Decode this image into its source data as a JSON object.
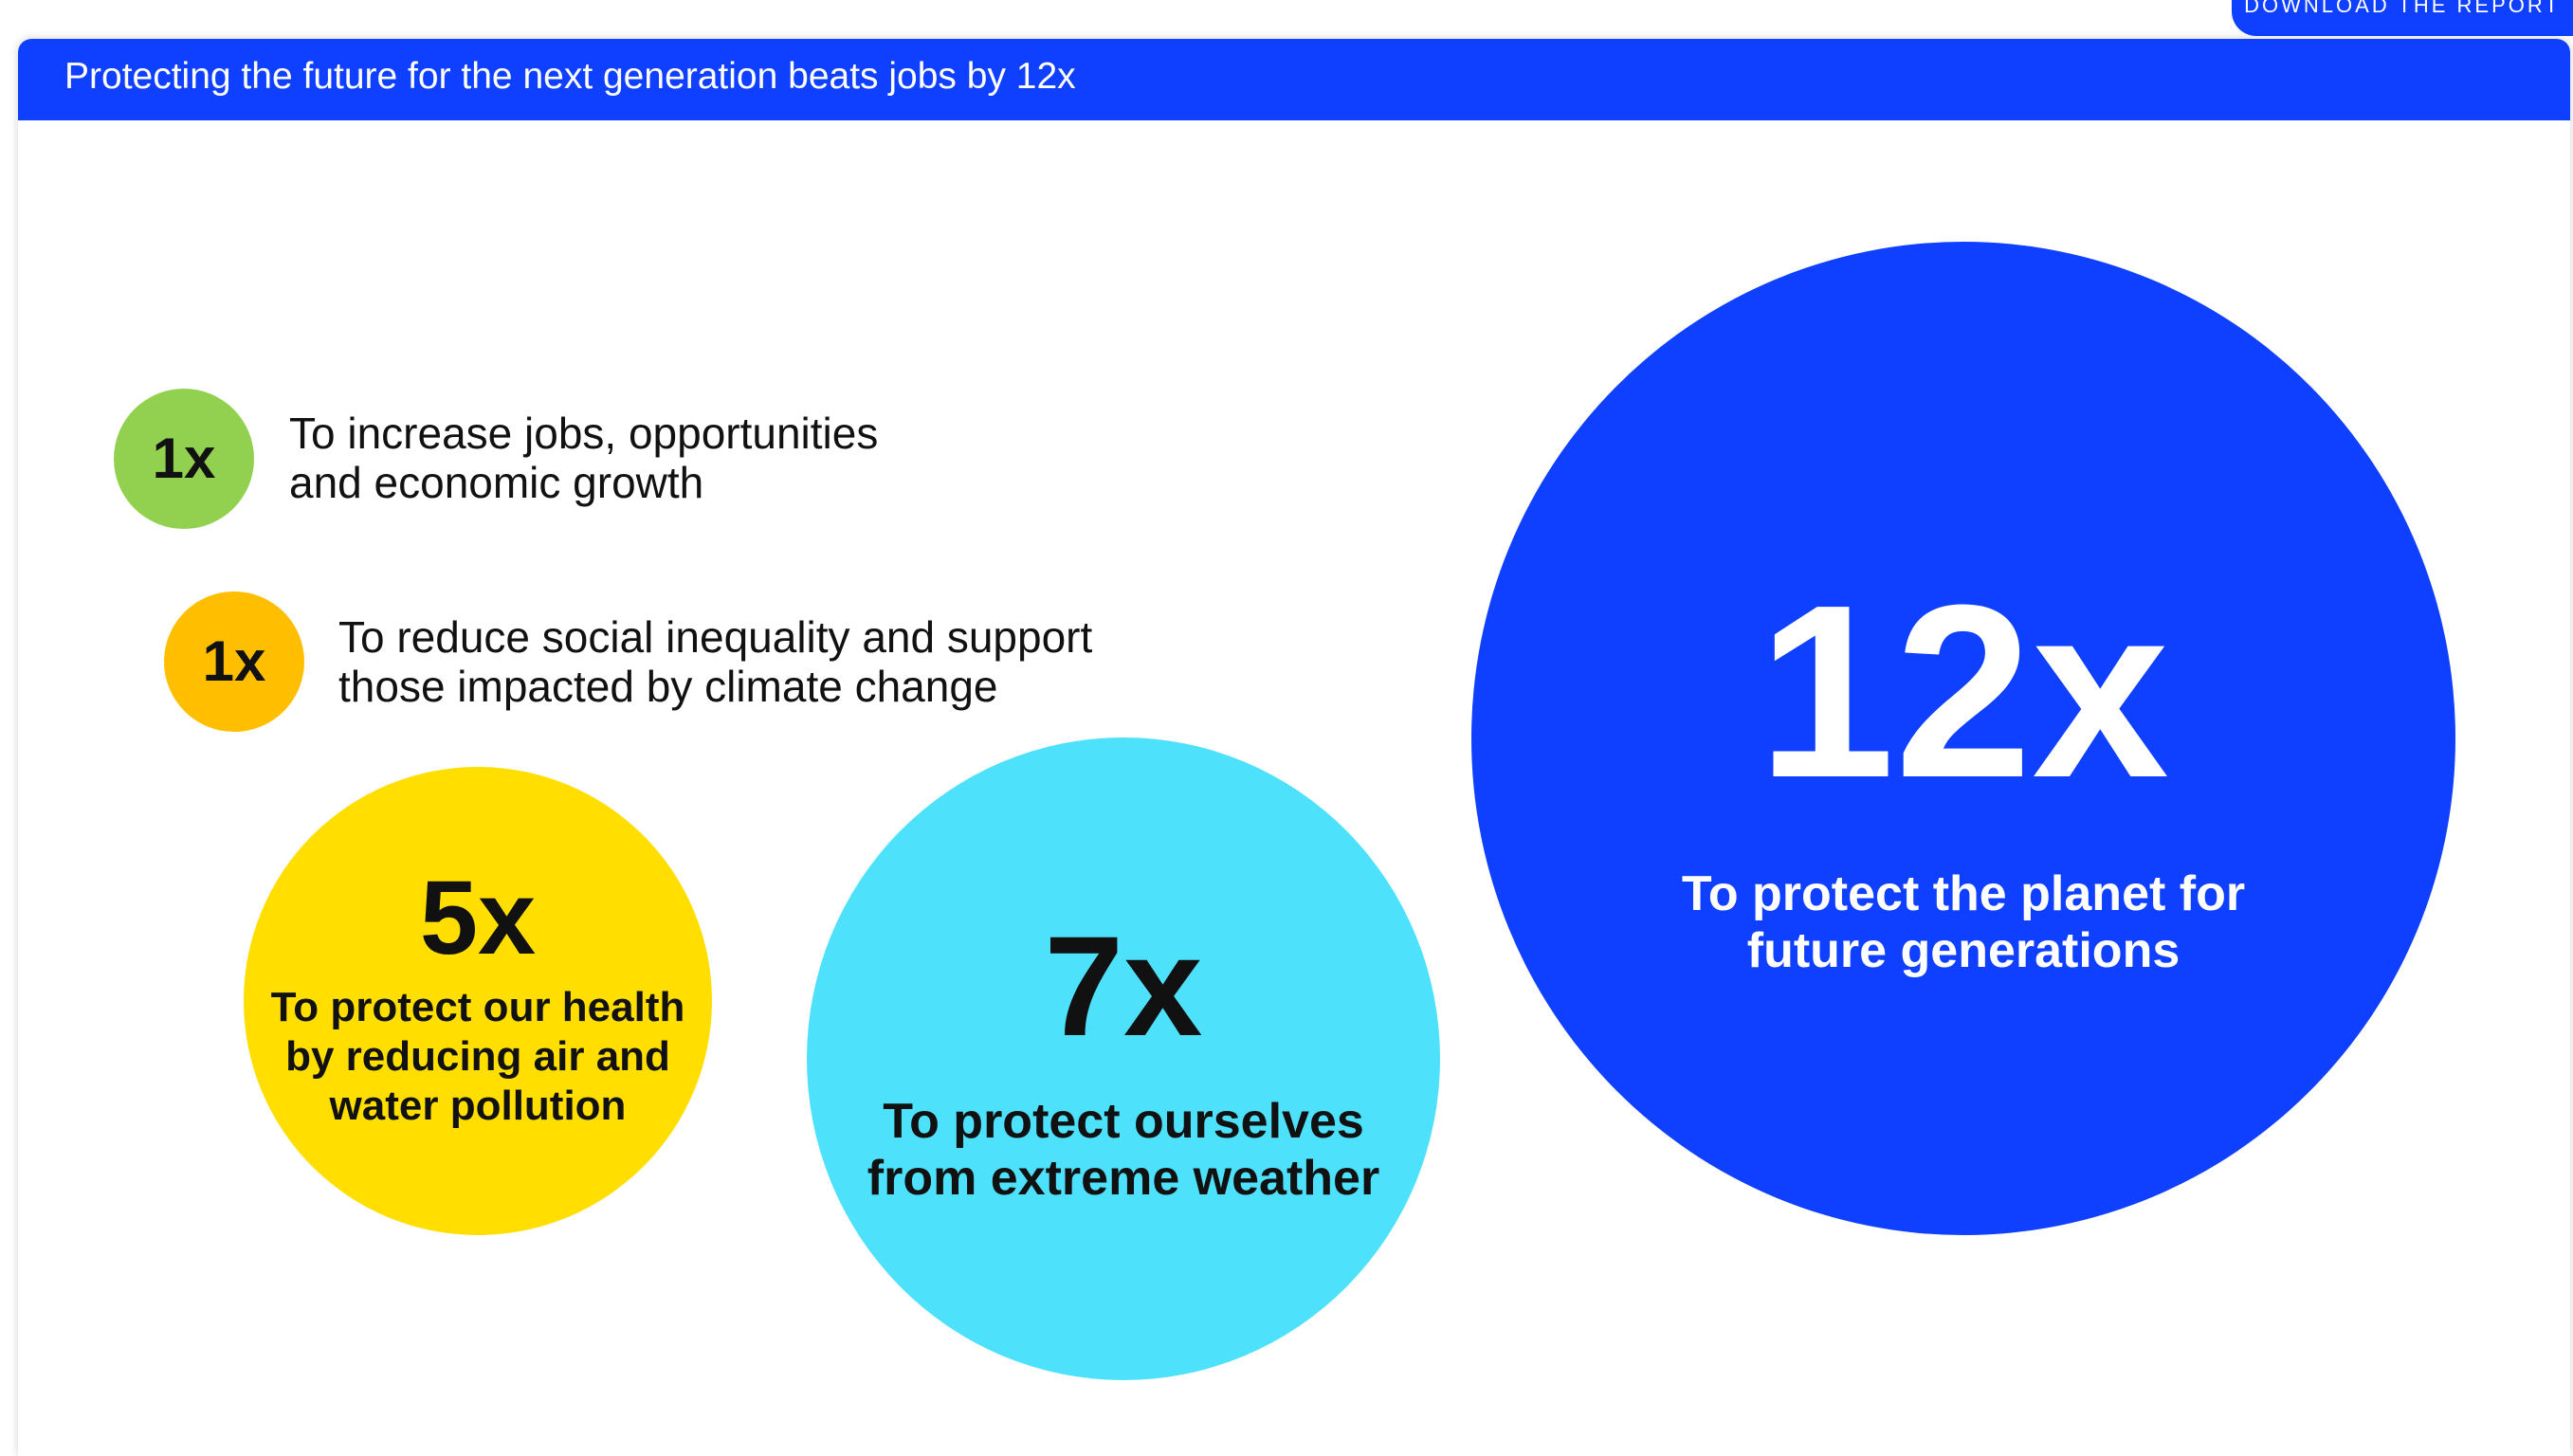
{
  "header": {
    "download_label": "DOWNLOAD THE REPORT",
    "title": "Protecting the future for the next generation beats jobs by 12x"
  },
  "colors": {
    "primary_blue": "#0f40ff",
    "green": "#92d050",
    "orange": "#ffbf00",
    "yellow": "#ffde00",
    "cyan": "#4ee1fc"
  },
  "items": [
    {
      "multiplier": "1x",
      "value": 1,
      "label": "To increase jobs, opportunities\nand economic growth",
      "color": "#92d050"
    },
    {
      "multiplier": "1x",
      "value": 1,
      "label": "To reduce social inequality and support\nthose impacted by climate change",
      "color": "#ffbf00"
    },
    {
      "multiplier": "5x",
      "value": 5,
      "label": "To protect our health by reducing air and water pollution",
      "color": "#ffde00"
    },
    {
      "multiplier": "7x",
      "value": 7,
      "label": "To protect ourselves from extreme weather",
      "color": "#4ee1fc"
    },
    {
      "multiplier": "12x",
      "value": 12,
      "label": "To protect the planet for future generations",
      "color": "#0f40ff"
    }
  ]
}
